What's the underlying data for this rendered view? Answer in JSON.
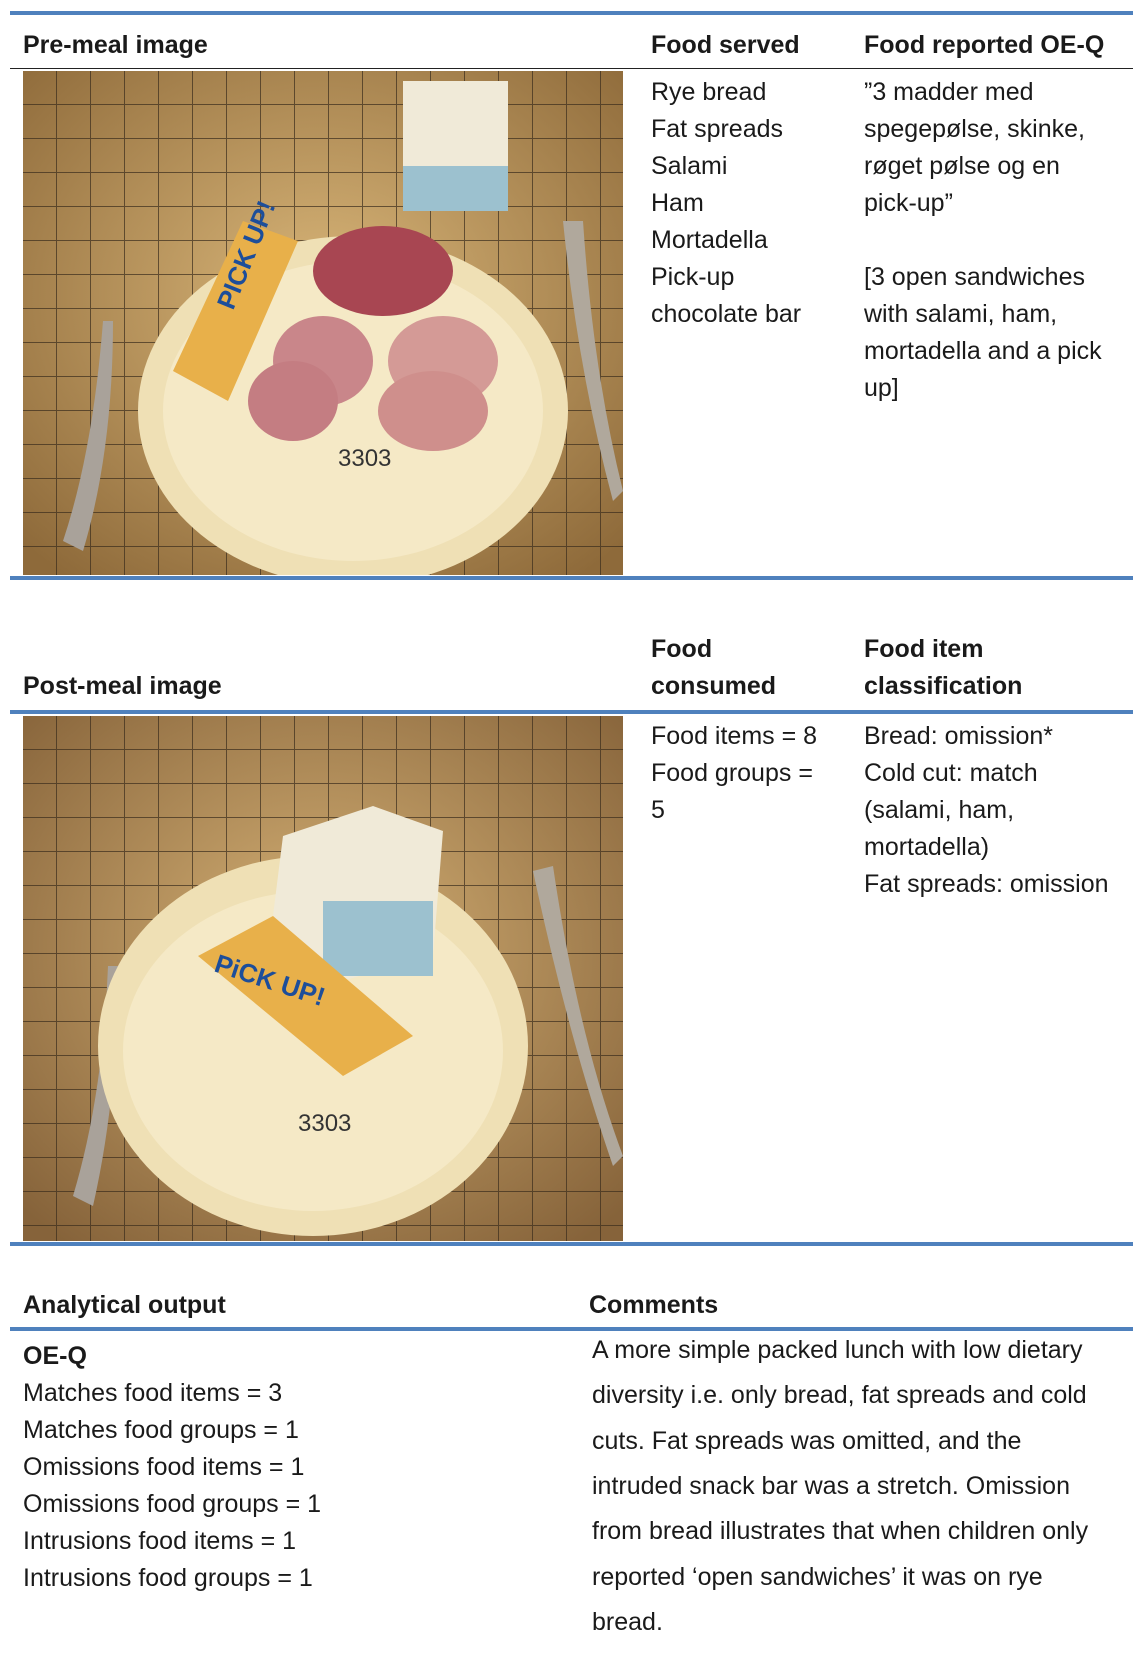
{
  "pre_meal": {
    "headers": [
      "Pre-meal image",
      "Food served",
      "Food reported OE-Q"
    ],
    "image_label": "3303",
    "bar_label": "PICK UP!",
    "food_served": [
      "Rye bread",
      "Fat spreads",
      "Salami",
      "Ham",
      "Mortadella",
      "Pick-up",
      "chocolate bar"
    ],
    "food_reported": [
      "”3 madder med",
      "spegepølse, skinke,",
      "røget pølse og en",
      "pick-up”",
      "",
      "[3 open sandwiches",
      "with salami, ham,",
      "mortadella and a pick",
      "up]"
    ]
  },
  "post_meal": {
    "headers": [
      "Post-meal image",
      "Food",
      "consumed",
      "Food item",
      "classification"
    ],
    "image_label": "3303",
    "bar_label": "PiCK UP!",
    "food_consumed": [
      "Food items = 8",
      "Food groups =",
      "5"
    ],
    "classification": [
      "Bread: omission*",
      "Cold cut: match",
      "(salami, ham,",
      "mortadella)",
      "Fat spreads: omission"
    ]
  },
  "analysis": {
    "headers": [
      "Analytical output",
      "Comments"
    ],
    "subheading": "OE-Q",
    "output": [
      "Matches food items = 3",
      "Matches food groups = 1",
      "Omissions food items = 1",
      "Omissions food groups = 1",
      "Intrusions food items = 1",
      "Intrusions food groups = 1"
    ],
    "comments": [
      "A more simple packed lunch with low dietary",
      "diversity i.e. only bread, fat spreads and cold",
      "cuts. Fat spreads was omitted, and the",
      "intruded snack bar was a stretch. Omission",
      "from bread illustrates that when children only",
      "reported ‘open sandwiches’ it was on rye",
      "bread."
    ]
  }
}
